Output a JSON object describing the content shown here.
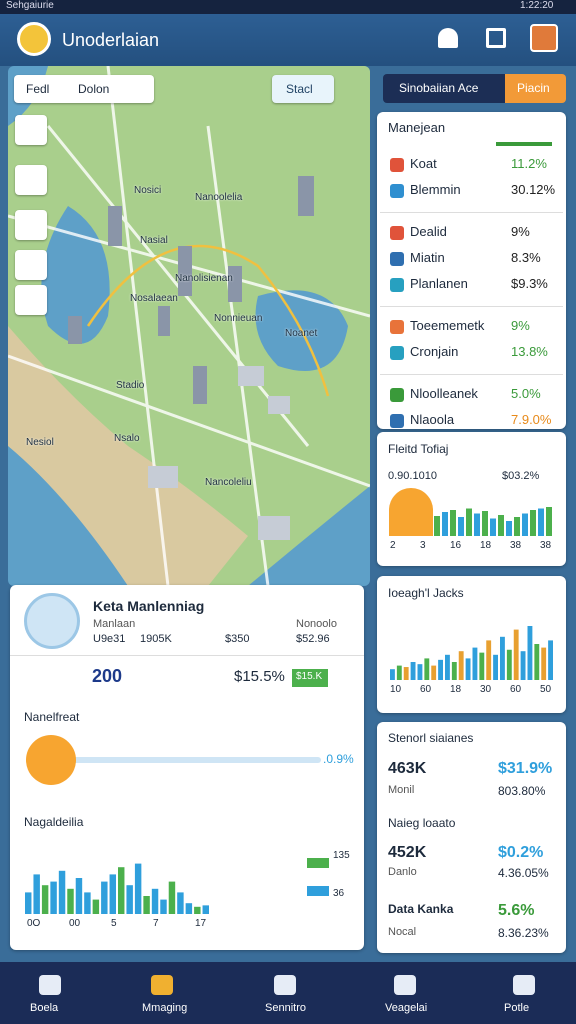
{
  "status_bar": {
    "left": "Sehgaiurie",
    "time": "1:22:20"
  },
  "app_bar": {
    "title": "Unoderlaian"
  },
  "map": {
    "controls": [
      "Fedl",
      "Dolon"
    ],
    "button": "Stacl",
    "labels": [
      "Nosici",
      "Nanoolelia",
      "Nasial",
      "Nanolisienan",
      "Nosalaean",
      "Nonnieuan",
      "Noanet",
      "Stadio",
      "Nesiol",
      "Nsalo",
      "Nancoleliu"
    ]
  },
  "right_panel": {
    "tabs": [
      "Sinobaiian Ace",
      "Piacin"
    ],
    "list_title": "Manejean",
    "groups": [
      [
        {
          "name": "Koat",
          "value": "11.2%",
          "color": "#e0533a",
          "value_color": "#3a9a3a"
        },
        {
          "name": "Blemmin",
          "value": "30.12%",
          "color": "#2f8fd0",
          "value_color": "#222"
        }
      ],
      [
        {
          "name": "Dealid",
          "value": "9%",
          "color": "#e0533a",
          "value_color": "#222"
        },
        {
          "name": "Miatin",
          "value": "8.3%",
          "color": "#2f6fb0",
          "value_color": "#222"
        },
        {
          "name": "Planlanen",
          "value": "$9.3%",
          "color": "#27a0c0",
          "value_color": "#222"
        }
      ],
      [
        {
          "name": "Toeememetk",
          "value": "9%",
          "color": "#e8733a",
          "value_color": "#3a9a3a"
        },
        {
          "name": "Cronjain",
          "value": "13.8%",
          "color": "#27a0c0",
          "value_color": "#3a9a3a"
        }
      ],
      [
        {
          "name": "Nloolleanek",
          "value": "5.0%",
          "color": "#3a9a3a",
          "value_color": "#3a9a3a"
        },
        {
          "name": "Nlaoola",
          "value": "7.9.0%",
          "color": "#2f6fb0",
          "value_color": "#e88a1a"
        }
      ]
    ]
  },
  "fleet_card": {
    "title": "Fleitd Tofiaj",
    "left": "0.90.1010",
    "right": "$03.2%",
    "x_labels": [
      "2",
      "3",
      "16",
      "18",
      "38",
      "38"
    ],
    "values": [
      40,
      48,
      52,
      38,
      55,
      45,
      50,
      35,
      42,
      30,
      38,
      45,
      52,
      55,
      58
    ],
    "colors": [
      "#4cb04c",
      "#2f9fdc"
    ]
  },
  "jacks_card": {
    "title": "Ioeagh'l Jacks",
    "x_labels": [
      "10",
      "60",
      "18",
      "30",
      "60",
      "50"
    ],
    "values": [
      15,
      20,
      18,
      25,
      22,
      30,
      20,
      28,
      35,
      25,
      40,
      30,
      45,
      38,
      55,
      35,
      60,
      42,
      70,
      40,
      75,
      50,
      45,
      55
    ],
    "colors": [
      "#2f9fdc",
      "#4cb04c",
      "#e8a030",
      "#2f9fdc"
    ]
  },
  "stats_card": {
    "title": "Stenorl siaianes",
    "rows": [
      {
        "value": "463K",
        "pct": "$31.9%",
        "label": "Monil",
        "sub": "803.80%",
        "pct_color": "#2f9fdc"
      },
      {
        "heading": "Naieg loaato",
        "value": "452K",
        "pct": "$0.2%",
        "label": "Danlo",
        "sub": "4.36.05%",
        "pct_color": "#2f9fdc"
      },
      {
        "value": "Data Kanka",
        "pct": "5.6%",
        "label": "Nocal",
        "sub": "8.36.23%",
        "pct_color": "#3a9a3a"
      }
    ]
  },
  "detail_card": {
    "title": "Keta Manlenniag",
    "sub_left": "Manlaan",
    "sub_right": "Nonoolo",
    "stats": [
      "U9e31",
      "1905K",
      "$350",
      "$52.96"
    ],
    "count": "200",
    "pct": "$15.5%",
    "badge": "$15.K",
    "slider_title": "Nanelfreat",
    "slider_value": ".0.9%",
    "chart_title": "Nagaldeilia",
    "chart_x_labels": [
      "0O",
      "00",
      "5",
      "7",
      "17"
    ],
    "legend": [
      "135",
      "36"
    ],
    "values": [
      30,
      55,
      40,
      45,
      60,
      35,
      50,
      30,
      20,
      45,
      55,
      65,
      40,
      70,
      25,
      35,
      20,
      45,
      30,
      15,
      10,
      12
    ],
    "colors": [
      "#2f9fdc",
      "#2f9fdc",
      "#4cb04c"
    ]
  },
  "bottom_nav": [
    "Boela",
    "Mmaging",
    "Sennitro",
    "Veagelai",
    "Potle"
  ]
}
